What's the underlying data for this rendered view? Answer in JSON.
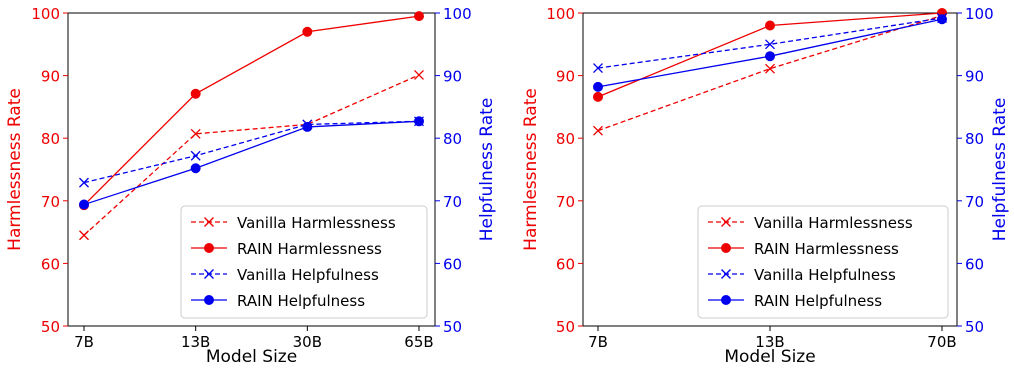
{
  "colors": {
    "harmlessness": "#ee0000",
    "helpfulness": "#0000ee",
    "axis": "#000000"
  },
  "chart_data": [
    {
      "type": "line",
      "categories": [
        "7B",
        "13B",
        "30B",
        "65B"
      ],
      "xlabel": "Model Size",
      "ylabel_left": "Harmlessness Rate",
      "ylabel_right": "Helpfulness Rate",
      "ylim_left": [
        50,
        100
      ],
      "ylim_right": [
        50,
        100
      ],
      "yticks": [
        50,
        60,
        70,
        80,
        90,
        100
      ],
      "legend": {
        "placement": "bottom-right"
      },
      "series": [
        {
          "name": "Vanilla Harmlessness",
          "axis": "left",
          "style": "dashed",
          "marker": "x",
          "color": "#ee0000",
          "values": [
            64.5,
            80.7,
            82.2,
            90.1
          ]
        },
        {
          "name": "RAIN Harmlessness",
          "axis": "left",
          "style": "solid",
          "marker": "o",
          "color": "#ee0000",
          "values": [
            69.3,
            87.1,
            97.0,
            99.5
          ]
        },
        {
          "name": "Vanilla Helpfulness",
          "axis": "right",
          "style": "dashed",
          "marker": "x",
          "color": "#0000ee",
          "values": [
            72.9,
            77.2,
            82.2,
            82.7
          ]
        },
        {
          "name": "RAIN Helpfulness",
          "axis": "right",
          "style": "solid",
          "marker": "o",
          "color": "#0000ee",
          "values": [
            69.4,
            75.2,
            81.8,
            82.7
          ]
        }
      ]
    },
    {
      "type": "line",
      "categories": [
        "7B",
        "13B",
        "70B"
      ],
      "xlabel": "Model Size",
      "ylabel_left": "Harmlessness Rate",
      "ylabel_right": "Helpfulness Rate",
      "ylim_left": [
        50,
        100
      ],
      "ylim_right": [
        50,
        100
      ],
      "yticks": [
        50,
        60,
        70,
        80,
        90,
        100
      ],
      "legend": {
        "placement": "bottom-right"
      },
      "series": [
        {
          "name": "Vanilla Harmlessness",
          "axis": "left",
          "style": "dashed",
          "marker": "x",
          "color": "#ee0000",
          "values": [
            81.2,
            91.1,
            99.6
          ]
        },
        {
          "name": "RAIN Harmlessness",
          "axis": "left",
          "style": "solid",
          "marker": "o",
          "color": "#ee0000",
          "values": [
            86.6,
            98.0,
            100.0
          ]
        },
        {
          "name": "Vanilla Helpfulness",
          "axis": "right",
          "style": "dashed",
          "marker": "x",
          "color": "#0000ee",
          "values": [
            91.2,
            95.0,
            99.2
          ]
        },
        {
          "name": "RAIN Helpfulness",
          "axis": "right",
          "style": "solid",
          "marker": "o",
          "color": "#0000ee",
          "values": [
            88.2,
            93.1,
            99.0
          ]
        }
      ]
    }
  ]
}
